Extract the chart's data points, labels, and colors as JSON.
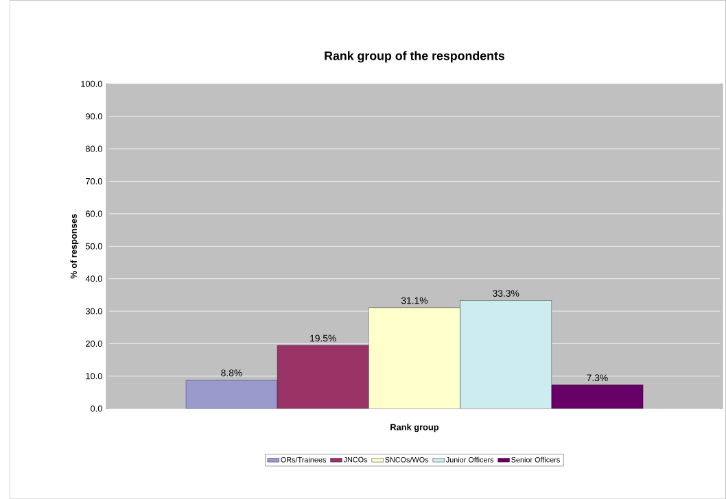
{
  "chart_data": {
    "type": "bar",
    "title": "Rank group of the respondents",
    "xlabel": "Rank group",
    "ylabel": "% of responses",
    "categories": [
      null
    ],
    "series": [
      {
        "name": "ORs/Trainees",
        "color": "#9999cc",
        "values": [
          8.8
        ],
        "value_labels": [
          "8.8%"
        ]
      },
      {
        "name": "JNCOs",
        "color": "#993366",
        "values": [
          19.5
        ],
        "value_labels": [
          "19.5%"
        ]
      },
      {
        "name": "SNCOs/WOs",
        "color": "#ffffcc",
        "values": [
          31.1
        ],
        "value_labels": [
          "31.1%"
        ]
      },
      {
        "name": "Junior Officers",
        "color": "#ccecf0",
        "values": [
          33.3
        ],
        "value_labels": [
          "33.3%"
        ]
      },
      {
        "name": "Senior Officers",
        "color": "#660066",
        "values": [
          7.3
        ],
        "value_labels": [
          "7.3%"
        ]
      }
    ],
    "ylim": [
      0,
      100
    ],
    "yticks": [
      {
        "value": 0,
        "label": "0.0"
      },
      {
        "value": 10,
        "label": "10.0"
      },
      {
        "value": 20,
        "label": "20.0"
      },
      {
        "value": 30,
        "label": "30.0"
      },
      {
        "value": 40,
        "label": "40.0"
      },
      {
        "value": 50,
        "label": "50.0"
      },
      {
        "value": 60,
        "label": "60.0"
      },
      {
        "value": 70,
        "label": "70.0"
      },
      {
        "value": 80,
        "label": "80.0"
      },
      {
        "value": 90,
        "label": "90.0"
      },
      {
        "value": 100,
        "label": "100.0"
      }
    ],
    "grid": "y",
    "legend": "bottom"
  }
}
